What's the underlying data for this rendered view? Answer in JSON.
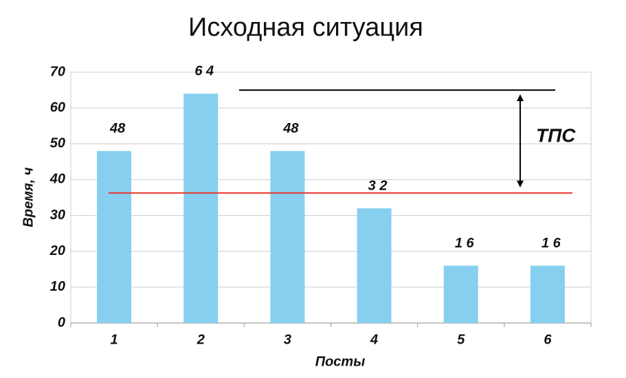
{
  "chart_data": {
    "type": "bar",
    "title": "Исходная ситуация",
    "x_label": "Посты",
    "y_label": "Время, ч",
    "categories": [
      "1",
      "2",
      "3",
      "4",
      "5",
      "6"
    ],
    "values": [
      48,
      64,
      48,
      32,
      16,
      16
    ],
    "value_labels": [
      "48",
      "6 4",
      "48",
      "3 2",
      "1 6",
      "1 6"
    ],
    "color": "#87cfee",
    "ylim": [
      0,
      70
    ],
    "yticks": [
      0,
      10,
      20,
      30,
      40,
      50,
      60,
      70
    ],
    "grid": true,
    "lines": [
      {
        "value": 65,
        "color": "#000000"
      },
      {
        "value": 36.3,
        "color": "#e8322a"
      }
    ],
    "annotation": "ТПС"
  }
}
